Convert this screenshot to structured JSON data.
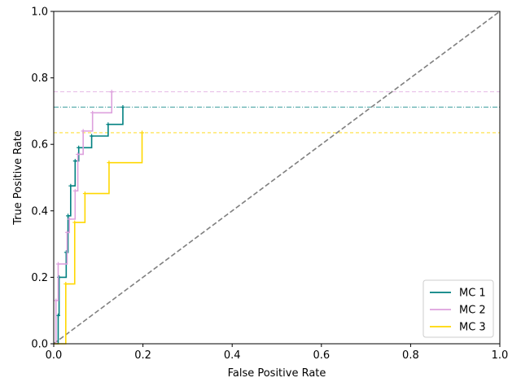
{
  "chart_data": {
    "type": "line",
    "title": "",
    "xlabel": "False Positive Rate",
    "ylabel": "True Positive Rate",
    "xlim": [
      0.0,
      1.0
    ],
    "ylim": [
      0.0,
      1.0
    ],
    "xticks": [
      "0.0",
      "0.2",
      "0.4",
      "0.6",
      "0.8",
      "1.0"
    ],
    "yticks": [
      "0.0",
      "0.2",
      "0.4",
      "0.6",
      "0.8",
      "1.0"
    ],
    "grid": false,
    "legend_position": "lower-right",
    "diagonal": {
      "x": [
        0,
        1
      ],
      "y": [
        0,
        1
      ],
      "color": "#808080",
      "style": "dashed"
    },
    "series": [
      {
        "name": "MC 1",
        "color": "#008080",
        "max_tpr": 0.712,
        "x": [
          0.0,
          0.01,
          0.01,
          0.012,
          0.012,
          0.028,
          0.028,
          0.032,
          0.032,
          0.038,
          0.038,
          0.048,
          0.048,
          0.056,
          0.056,
          0.085,
          0.085,
          0.122,
          0.122,
          0.155,
          0.155
        ],
        "y": [
          0.0,
          0.0,
          0.085,
          0.085,
          0.2,
          0.2,
          0.275,
          0.275,
          0.385,
          0.385,
          0.475,
          0.475,
          0.55,
          0.55,
          0.59,
          0.59,
          0.625,
          0.625,
          0.66,
          0.66,
          0.712
        ]
      },
      {
        "name": "MC 2",
        "color": "#DDA0DD",
        "max_tpr": 0.758,
        "x": [
          0.0,
          0.005,
          0.005,
          0.01,
          0.01,
          0.03,
          0.03,
          0.035,
          0.035,
          0.048,
          0.048,
          0.054,
          0.054,
          0.066,
          0.066,
          0.087,
          0.087,
          0.13,
          0.13
        ],
        "y": [
          0.0,
          0.0,
          0.13,
          0.13,
          0.24,
          0.24,
          0.335,
          0.335,
          0.375,
          0.375,
          0.46,
          0.46,
          0.57,
          0.57,
          0.64,
          0.64,
          0.695,
          0.695,
          0.758
        ]
      },
      {
        "name": "MC 3",
        "color": "#FFD700",
        "max_tpr": 0.635,
        "x": [
          0.0,
          0.027,
          0.027,
          0.047,
          0.047,
          0.066,
          0.066,
          0.07,
          0.07,
          0.124,
          0.124,
          0.198,
          0.198
        ],
        "y": [
          0.0,
          0.0,
          0.18,
          0.18,
          0.365,
          0.365,
          0.365,
          0.365,
          0.452,
          0.452,
          0.545,
          0.545,
          0.635
        ]
      }
    ]
  }
}
